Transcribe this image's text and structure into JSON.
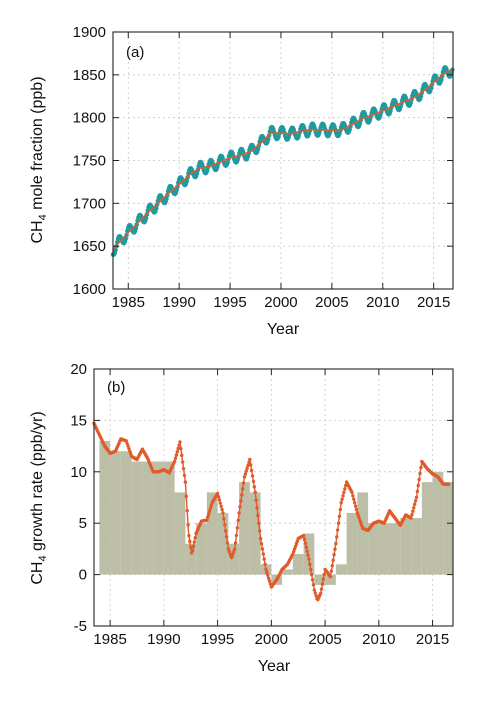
{
  "colors": {
    "monthly": "#1f9aa0",
    "trend": "#e05a2b",
    "growth_bar": "#bcbea6",
    "growth_line": "#e05a2b"
  },
  "chart_data": [
    {
      "type": "line",
      "panel_label": "(a)",
      "xlabel": "Year",
      "ylabel": "CH4 mole fraction (ppb)",
      "ylabel_main": "CH",
      "ylabel_sub": "4",
      "ylabel_rest": " mole fraction (ppb)",
      "xlim": [
        1983.5,
        2016.9
      ],
      "ylim": [
        1600,
        1900
      ],
      "xticks": [
        1985,
        1990,
        1995,
        2000,
        2005,
        2010,
        2015
      ],
      "yticks": [
        1600,
        1650,
        1700,
        1750,
        1800,
        1850,
        1900
      ],
      "seasonal_amplitude_ppb": 7,
      "series": [
        {
          "style": "monthly-dots",
          "x": [
            1983.5,
            1984,
            1985,
            1986,
            1987,
            1988,
            1989,
            1990,
            1991,
            1992,
            1993,
            1994,
            1995,
            1996,
            1997,
            1998,
            1999,
            2000,
            2001,
            2002,
            2003,
            2004,
            2005,
            2006,
            2007,
            2008,
            2009,
            2010,
            2011,
            2012,
            2013,
            2014,
            2015,
            2016,
            2016.9
          ],
          "values": [
            1646,
            1653,
            1666,
            1678,
            1690,
            1701,
            1712,
            1722,
            1733,
            1741,
            1743,
            1748,
            1753,
            1756,
            1760,
            1770,
            1782,
            1782,
            1781,
            1784,
            1786,
            1786,
            1785,
            1786,
            1792,
            1799,
            1803,
            1808,
            1813,
            1818,
            1823,
            1831,
            1841,
            1851,
            1857
          ]
        },
        {
          "style": "trend-line",
          "x": [
            1983.5,
            1984,
            1985,
            1986,
            1987,
            1988,
            1989,
            1990,
            1991,
            1992,
            1993,
            1994,
            1995,
            1996,
            1997,
            1998,
            1999,
            2000,
            2001,
            2002,
            2003,
            2004,
            2005,
            2006,
            2007,
            2008,
            2009,
            2010,
            2011,
            2012,
            2013,
            2014,
            2015,
            2016,
            2016.9
          ],
          "values": [
            1646,
            1653,
            1666,
            1678,
            1690,
            1701,
            1712,
            1722,
            1733,
            1741,
            1743,
            1748,
            1753,
            1756,
            1760,
            1770,
            1782,
            1782,
            1781,
            1784,
            1786,
            1786,
            1785,
            1786,
            1792,
            1799,
            1803,
            1808,
            1813,
            1818,
            1823,
            1831,
            1841,
            1851,
            1857
          ]
        }
      ]
    },
    {
      "type": "bar",
      "panel_label": "(b)",
      "xlabel": "Year",
      "ylabel": "CH4 growth rate (ppb/yr)",
      "ylabel_main": "CH",
      "ylabel_sub": "4",
      "ylabel_rest": " growth rate (ppb/yr)",
      "xlim": [
        1983.5,
        2016.9
      ],
      "ylim": [
        -5,
        20
      ],
      "xticks": [
        1985,
        1990,
        1995,
        2000,
        2005,
        2010,
        2015
      ],
      "yticks": [
        -5,
        0,
        5,
        10,
        15,
        20
      ],
      "annual_bars": {
        "years": [
          1984,
          1985,
          1986,
          1987,
          1988,
          1989,
          1990,
          1991,
          1992,
          1993,
          1994,
          1995,
          1996,
          1997,
          1998,
          1999,
          2000,
          2001,
          2002,
          2003,
          2004,
          2005,
          2006,
          2007,
          2008,
          2009,
          2010,
          2011,
          2012,
          2013,
          2014,
          2015,
          2016
        ],
        "values": [
          13,
          12,
          12,
          11,
          11,
          11,
          11,
          8,
          3,
          5,
          8,
          6,
          3,
          9,
          8,
          1,
          -1,
          0.5,
          2,
          4,
          -1,
          -1,
          1,
          6,
          8,
          5,
          5,
          5,
          5.5,
          5.5,
          9,
          10,
          9
        ]
      },
      "smoothed_series": {
        "x": [
          1983.5,
          1984,
          1984.5,
          1985,
          1985.5,
          1986,
          1986.5,
          1987,
          1987.5,
          1988,
          1988.5,
          1989,
          1989.5,
          1990,
          1990.5,
          1991,
          1991.5,
          1992,
          1992.3,
          1992.6,
          1993,
          1993.5,
          1994,
          1994.5,
          1995,
          1995.5,
          1996,
          1996.3,
          1996.6,
          1997,
          1997.5,
          1998,
          1998.5,
          1999,
          1999.5,
          2000,
          2000.5,
          2001,
          2001.5,
          2002,
          2002.5,
          2003,
          2003.5,
          2004,
          2004.3,
          2004.6,
          2005,
          2005.5,
          2006,
          2006.5,
          2007,
          2007.5,
          2008,
          2008.5,
          2009,
          2009.5,
          2010,
          2010.5,
          2011,
          2011.5,
          2012,
          2012.5,
          2013,
          2013.5,
          2014,
          2014.5,
          2015,
          2015.5,
          2016,
          2016.5
        ],
        "values": [
          14.7,
          13.6,
          12.5,
          11.8,
          12.0,
          13.2,
          13.0,
          11.5,
          11.2,
          12.2,
          11.3,
          10.0,
          10.0,
          10.2,
          9.9,
          11.0,
          12.9,
          9.0,
          4.0,
          2.0,
          4.0,
          5.2,
          5.3,
          7.0,
          7.9,
          6.0,
          2.5,
          1.6,
          2.5,
          6.0,
          9.5,
          11.2,
          8.0,
          3.5,
          0.5,
          -1.2,
          -0.5,
          0.5,
          1.0,
          2.0,
          3.5,
          3.8,
          1.5,
          -1.5,
          -2.5,
          -1.8,
          0.5,
          -0.2,
          3.0,
          7.0,
          9.0,
          8.0,
          6.0,
          4.5,
          4.3,
          5.0,
          5.2,
          5.0,
          6.2,
          5.5,
          4.8,
          5.8,
          5.5,
          7.5,
          11.0,
          10.3,
          9.8,
          9.5,
          8.8,
          8.8
        ]
      }
    }
  ]
}
